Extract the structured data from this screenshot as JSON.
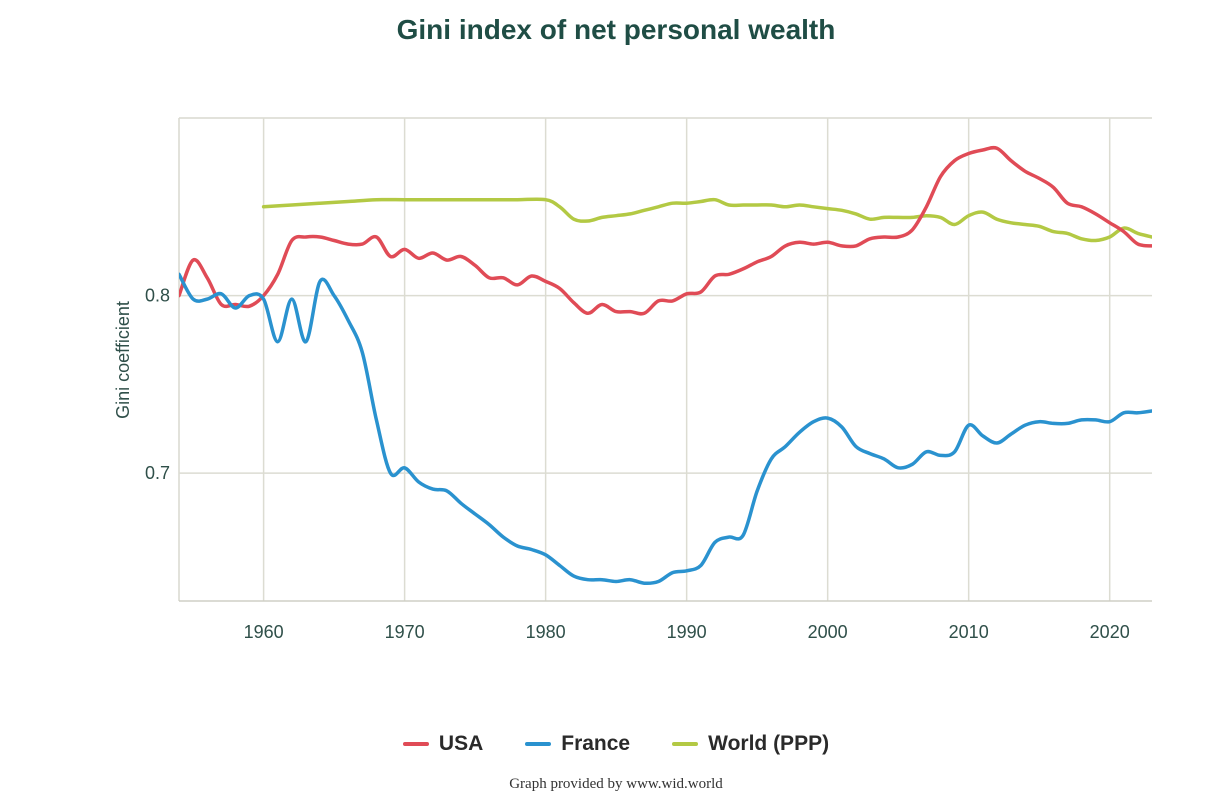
{
  "chart_data": {
    "type": "line",
    "title": "Gini index of net personal wealth",
    "xlabel": "",
    "ylabel": "Gini coefficient",
    "xlim": [
      1954,
      2023
    ],
    "ylim": [
      0.628,
      0.9
    ],
    "x_ticks": [
      1960,
      1970,
      1980,
      1990,
      2000,
      2010,
      2020
    ],
    "y_ticks": [
      0.7,
      0.8
    ],
    "y_tick_labels": [
      "0.7",
      "0.8"
    ],
    "grid": true,
    "legend_position": "bottom",
    "series": [
      {
        "name": "USA",
        "color": "#e04b56",
        "points": [
          [
            1954,
            0.8
          ],
          [
            1955,
            0.82
          ],
          [
            1956,
            0.81
          ],
          [
            1957,
            0.795
          ],
          [
            1958,
            0.795
          ],
          [
            1959,
            0.794
          ],
          [
            1960,
            0.8
          ],
          [
            1961,
            0.812
          ],
          [
            1962,
            0.831
          ],
          [
            1963,
            0.833
          ],
          [
            1964,
            0.833
          ],
          [
            1965,
            0.831
          ],
          [
            1966,
            0.829
          ],
          [
            1967,
            0.829
          ],
          [
            1968,
            0.833
          ],
          [
            1969,
            0.822
          ],
          [
            1970,
            0.826
          ],
          [
            1971,
            0.821
          ],
          [
            1972,
            0.824
          ],
          [
            1973,
            0.82
          ],
          [
            1974,
            0.822
          ],
          [
            1975,
            0.817
          ],
          [
            1976,
            0.81
          ],
          [
            1977,
            0.81
          ],
          [
            1978,
            0.806
          ],
          [
            1979,
            0.811
          ],
          [
            1980,
            0.808
          ],
          [
            1981,
            0.804
          ],
          [
            1982,
            0.796
          ],
          [
            1983,
            0.79
          ],
          [
            1984,
            0.795
          ],
          [
            1985,
            0.791
          ],
          [
            1986,
            0.791
          ],
          [
            1987,
            0.79
          ],
          [
            1988,
            0.797
          ],
          [
            1989,
            0.797
          ],
          [
            1990,
            0.801
          ],
          [
            1991,
            0.802
          ],
          [
            1992,
            0.811
          ],
          [
            1993,
            0.812
          ],
          [
            1994,
            0.815
          ],
          [
            1995,
            0.819
          ],
          [
            1996,
            0.822
          ],
          [
            1997,
            0.828
          ],
          [
            1998,
            0.83
          ],
          [
            1999,
            0.829
          ],
          [
            2000,
            0.83
          ],
          [
            2001,
            0.828
          ],
          [
            2002,
            0.828
          ],
          [
            2003,
            0.832
          ],
          [
            2004,
            0.833
          ],
          [
            2005,
            0.833
          ],
          [
            2006,
            0.837
          ],
          [
            2007,
            0.85
          ],
          [
            2008,
            0.867
          ],
          [
            2009,
            0.876
          ],
          [
            2010,
            0.88
          ],
          [
            2011,
            0.882
          ],
          [
            2012,
            0.883
          ],
          [
            2013,
            0.876
          ],
          [
            2014,
            0.87
          ],
          [
            2015,
            0.866
          ],
          [
            2016,
            0.861
          ],
          [
            2017,
            0.852
          ],
          [
            2018,
            0.85
          ],
          [
            2019,
            0.846
          ],
          [
            2020,
            0.841
          ],
          [
            2021,
            0.836
          ],
          [
            2022,
            0.829
          ],
          [
            2023,
            0.828
          ]
        ]
      },
      {
        "name": "France",
        "color": "#2a92cf",
        "points": [
          [
            1954,
            0.812
          ],
          [
            1955,
            0.798
          ],
          [
            1956,
            0.798
          ],
          [
            1957,
            0.801
          ],
          [
            1958,
            0.793
          ],
          [
            1959,
            0.8
          ],
          [
            1960,
            0.798
          ],
          [
            1961,
            0.774
          ],
          [
            1962,
            0.798
          ],
          [
            1963,
            0.774
          ],
          [
            1964,
            0.808
          ],
          [
            1965,
            0.8
          ],
          [
            1966,
            0.786
          ],
          [
            1967,
            0.768
          ],
          [
            1968,
            0.73
          ],
          [
            1969,
            0.7
          ],
          [
            1970,
            0.703
          ],
          [
            1971,
            0.695
          ],
          [
            1972,
            0.691
          ],
          [
            1973,
            0.69
          ],
          [
            1974,
            0.683
          ],
          [
            1975,
            0.677
          ],
          [
            1976,
            0.671
          ],
          [
            1977,
            0.664
          ],
          [
            1978,
            0.659
          ],
          [
            1979,
            0.657
          ],
          [
            1980,
            0.654
          ],
          [
            1981,
            0.648
          ],
          [
            1982,
            0.642
          ],
          [
            1983,
            0.64
          ],
          [
            1984,
            0.64
          ],
          [
            1985,
            0.639
          ],
          [
            1986,
            0.64
          ],
          [
            1987,
            0.638
          ],
          [
            1988,
            0.639
          ],
          [
            1989,
            0.644
          ],
          [
            1990,
            0.645
          ],
          [
            1991,
            0.648
          ],
          [
            1992,
            0.661
          ],
          [
            1993,
            0.664
          ],
          [
            1994,
            0.665
          ],
          [
            1995,
            0.69
          ],
          [
            1996,
            0.708
          ],
          [
            1997,
            0.715
          ],
          [
            1998,
            0.723
          ],
          [
            1999,
            0.729
          ],
          [
            2000,
            0.731
          ],
          [
            2001,
            0.726
          ],
          [
            2002,
            0.715
          ],
          [
            2003,
            0.711
          ],
          [
            2004,
            0.708
          ],
          [
            2005,
            0.703
          ],
          [
            2006,
            0.705
          ],
          [
            2007,
            0.712
          ],
          [
            2008,
            0.71
          ],
          [
            2009,
            0.712
          ],
          [
            2010,
            0.727
          ],
          [
            2011,
            0.721
          ],
          [
            2012,
            0.717
          ],
          [
            2013,
            0.722
          ],
          [
            2014,
            0.727
          ],
          [
            2015,
            0.729
          ],
          [
            2016,
            0.728
          ],
          [
            2017,
            0.728
          ],
          [
            2018,
            0.73
          ],
          [
            2019,
            0.73
          ],
          [
            2020,
            0.729
          ],
          [
            2021,
            0.734
          ],
          [
            2022,
            0.734
          ],
          [
            2023,
            0.735
          ]
        ]
      },
      {
        "name": "World (PPP)",
        "color": "#b3c944",
        "points": [
          [
            1960,
            0.85
          ],
          [
            1962,
            0.851
          ],
          [
            1964,
            0.852
          ],
          [
            1966,
            0.853
          ],
          [
            1968,
            0.854
          ],
          [
            1970,
            0.854
          ],
          [
            1972,
            0.854
          ],
          [
            1974,
            0.854
          ],
          [
            1976,
            0.854
          ],
          [
            1978,
            0.854
          ],
          [
            1980,
            0.854
          ],
          [
            1981,
            0.85
          ],
          [
            1982,
            0.843
          ],
          [
            1983,
            0.842
          ],
          [
            1984,
            0.844
          ],
          [
            1985,
            0.845
          ],
          [
            1986,
            0.846
          ],
          [
            1987,
            0.848
          ],
          [
            1988,
            0.85
          ],
          [
            1989,
            0.852
          ],
          [
            1990,
            0.852
          ],
          [
            1991,
            0.853
          ],
          [
            1992,
            0.854
          ],
          [
            1993,
            0.851
          ],
          [
            1994,
            0.851
          ],
          [
            1995,
            0.851
          ],
          [
            1996,
            0.851
          ],
          [
            1997,
            0.85
          ],
          [
            1998,
            0.851
          ],
          [
            1999,
            0.85
          ],
          [
            2000,
            0.849
          ],
          [
            2001,
            0.848
          ],
          [
            2002,
            0.846
          ],
          [
            2003,
            0.843
          ],
          [
            2004,
            0.844
          ],
          [
            2005,
            0.844
          ],
          [
            2006,
            0.844
          ],
          [
            2007,
            0.845
          ],
          [
            2008,
            0.844
          ],
          [
            2009,
            0.84
          ],
          [
            2010,
            0.845
          ],
          [
            2011,
            0.847
          ],
          [
            2012,
            0.843
          ],
          [
            2013,
            0.841
          ],
          [
            2014,
            0.84
          ],
          [
            2015,
            0.839
          ],
          [
            2016,
            0.836
          ],
          [
            2017,
            0.835
          ],
          [
            2018,
            0.832
          ],
          [
            2019,
            0.831
          ],
          [
            2020,
            0.833
          ],
          [
            2021,
            0.838
          ],
          [
            2022,
            0.835
          ],
          [
            2023,
            0.833
          ]
        ]
      }
    ]
  },
  "credit": "Graph provided by www.wid.world"
}
